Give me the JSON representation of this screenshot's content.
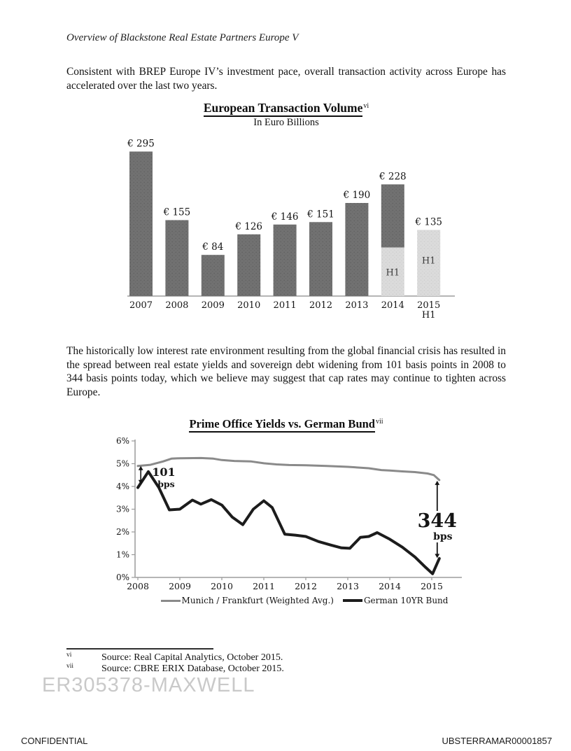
{
  "page": {
    "header": "Overview of Blackstone Real Estate Partners Europe V",
    "paragraph1": "Consistent with BREP Europe IV’s investment pace, overall transaction activity across Europe has accelerated over the last two years.",
    "paragraph2": "The historically low interest rate environment resulting from the global financial crisis has resulted in the spread between real estate yields and sovereign debt widening from 101 basis points in 2008 to 344 basis points today, which we believe may suggest that cap rates may continue to tighten across Europe.",
    "footnotes": [
      {
        "marker": "vi",
        "text": "Source: Real Capital Analytics, October 2015."
      },
      {
        "marker": "vii",
        "text": "Source: CBRE ERIX Database, October 2015."
      }
    ],
    "watermark": "ER305378-MAXWELL",
    "footer_left": "CONFIDENTIAL",
    "footer_right": "UBSTERRAMAR00001857"
  },
  "chart_data": [
    {
      "type": "bar",
      "title": "European Transaction Volume",
      "footnote_ref": "vi",
      "subtitle": "In Euro Billions",
      "xlabel": "",
      "ylabel": "",
      "ylim": [
        0,
        310
      ],
      "grid": false,
      "categories": [
        "2007",
        "2008",
        "2009",
        "2010",
        "2011",
        "2012",
        "2013",
        "2014",
        "2015"
      ],
      "category_sublabels": [
        null,
        null,
        null,
        null,
        null,
        null,
        null,
        null,
        "H1"
      ],
      "values": [
        295,
        155,
        84,
        126,
        146,
        151,
        190,
        228,
        135
      ],
      "value_labels": [
        "€ 295",
        "€ 155",
        "€ 84",
        "€ 126",
        "€ 146",
        "€ 151",
        "€ 190",
        "€ 228",
        "€ 135"
      ],
      "bar_styles": [
        "dark",
        "dark",
        "dark",
        "dark",
        "dark",
        "dark",
        "dark",
        "split",
        "light"
      ],
      "split_h1_value": 99,
      "h1_text": "H1",
      "colors": {
        "dark": "#717171",
        "light": "#dbdbdb"
      }
    },
    {
      "type": "line",
      "title": "Prime Office Yields vs. German Bund",
      "footnote_ref": "vii",
      "xlabel": "",
      "ylabel": "",
      "ylim": [
        0,
        6
      ],
      "grid": false,
      "legend_position": "bottom",
      "y_ticks": [
        "0%",
        "1%",
        "2%",
        "3%",
        "4%",
        "5%",
        "6%"
      ],
      "x_ticks": [
        "2008",
        "2009",
        "2010",
        "2011",
        "2012",
        "2013",
        "2014",
        "2015"
      ],
      "series": [
        {
          "name": "Munich / Frankfurt (Weighted Avg.)",
          "color": "#8a8a8a",
          "width": 3,
          "points": [
            [
              2008,
              4.9
            ],
            [
              2008.3,
              4.95
            ],
            [
              2008.6,
              5.1
            ],
            [
              2008.8,
              5.22
            ],
            [
              2009,
              5.24
            ],
            [
              2009.5,
              5.25
            ],
            [
              2009.8,
              5.22
            ],
            [
              2010,
              5.16
            ],
            [
              2010.3,
              5.12
            ],
            [
              2010.7,
              5.1
            ],
            [
              2011,
              5.02
            ],
            [
              2011.3,
              4.97
            ],
            [
              2011.6,
              4.94
            ],
            [
              2012,
              4.93
            ],
            [
              2012.5,
              4.9
            ],
            [
              2013,
              4.86
            ],
            [
              2013.5,
              4.8
            ],
            [
              2013.8,
              4.72
            ],
            [
              2014,
              4.7
            ],
            [
              2014.3,
              4.66
            ],
            [
              2014.6,
              4.63
            ],
            [
              2014.9,
              4.57
            ],
            [
              2015.05,
              4.5
            ],
            [
              2015.18,
              4.28
            ]
          ]
        },
        {
          "name": "German 10YR Bund",
          "color": "#1c1c1c",
          "width": 4,
          "points": [
            [
              2008,
              3.95
            ],
            [
              2008.25,
              4.65
            ],
            [
              2008.5,
              3.95
            ],
            [
              2008.75,
              2.97
            ],
            [
              2009,
              3.0
            ],
            [
              2009.3,
              3.4
            ],
            [
              2009.5,
              3.22
            ],
            [
              2009.75,
              3.42
            ],
            [
              2010,
              3.18
            ],
            [
              2010.25,
              2.65
            ],
            [
              2010.5,
              2.32
            ],
            [
              2010.75,
              3.0
            ],
            [
              2011,
              3.37
            ],
            [
              2011.2,
              3.07
            ],
            [
              2011.5,
              1.9
            ],
            [
              2011.75,
              1.86
            ],
            [
              2012,
              1.8
            ],
            [
              2012.3,
              1.58
            ],
            [
              2012.6,
              1.42
            ],
            [
              2012.85,
              1.3
            ],
            [
              2013.05,
              1.28
            ],
            [
              2013.3,
              1.76
            ],
            [
              2013.5,
              1.8
            ],
            [
              2013.7,
              1.97
            ],
            [
              2014,
              1.68
            ],
            [
              2014.3,
              1.33
            ],
            [
              2014.6,
              0.9
            ],
            [
              2014.85,
              0.45
            ],
            [
              2015.02,
              0.16
            ],
            [
              2015.18,
              0.83
            ]
          ]
        }
      ],
      "annotations": [
        {
          "label": "101",
          "sublabel": "bps",
          "x": 2008.07,
          "from": 4.9,
          "to": 4.1,
          "style": "small"
        },
        {
          "label": "344",
          "sublabel": "bps",
          "x": 2015.13,
          "from": 4.25,
          "to": 0.85,
          "style": "large"
        }
      ]
    }
  ]
}
